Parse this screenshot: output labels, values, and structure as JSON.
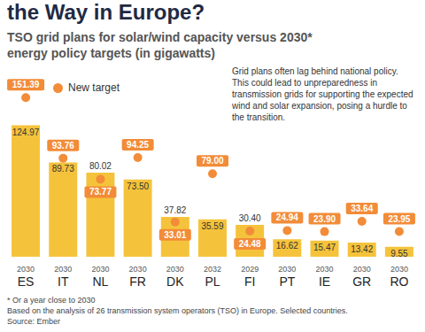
{
  "chart_data": {
    "type": "bar",
    "title": "the Way in Europe?",
    "subtitle": "TSO grid plans for solar/wind capacity versus 2030* energy policy targets (in gigawatts)",
    "annotation": "Grid plans often lag behind national policy. This could lead to unpreparedness in transmission grids for supporting the expected wind and solar expansion, posing a hurdle to the transition.",
    "notes": [
      "* Or a year close to 2030",
      "Based on the analysis of 26 transmission system operators (TSO) in Europe. Selected countries.",
      "Source: Ember"
    ],
    "categories": [
      "ES",
      "IT",
      "NL",
      "FR",
      "DK",
      "PL",
      "FI",
      "PT",
      "IE",
      "GR",
      "RO"
    ],
    "years": [
      "2030",
      "2030",
      "2030",
      "2030",
      "2030",
      "2032",
      "2029",
      "2030",
      "2030",
      "2030",
      "2030"
    ],
    "series": [
      {
        "type": "bar",
        "color": "#f5c33b",
        "values": [
          124.97,
          89.73,
          80.02,
          73.5,
          37.82,
          35.59,
          30.4,
          16.62,
          15.47,
          13.42,
          9.55
        ],
        "value_labels": [
          "124.97",
          "89.73",
          "80.02",
          "73.50",
          "37.82",
          "35.59",
          "30.40",
          "16.62",
          "15.47",
          "13.42",
          "9.55"
        ]
      },
      {
        "name": "New target",
        "type": "scatter",
        "marker": "circle",
        "color": "#f28c38",
        "values": [
          151.39,
          93.76,
          73.77,
          94.25,
          33.01,
          79.0,
          24.48,
          24.94,
          23.9,
          33.64,
          23.95
        ],
        "value_labels": [
          "151.39",
          "93.76",
          "73.77",
          "94.25",
          "33.01",
          "79.00",
          "24.48",
          "24.94",
          "23.90",
          "33.64",
          "23.95"
        ]
      }
    ],
    "ylim": [
      0,
      160
    ],
    "data_labels": true,
    "tick_labels": "x",
    "legend": "upper left"
  }
}
